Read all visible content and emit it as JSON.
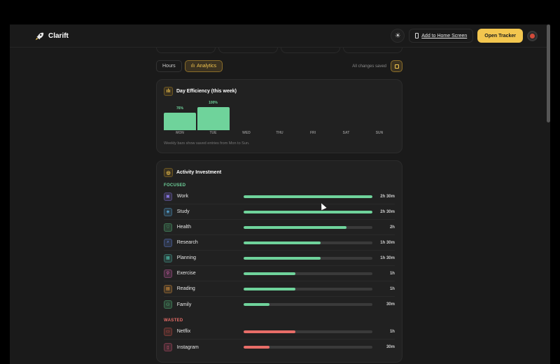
{
  "header": {
    "brand": "Clarift",
    "add_home": "Add to Home Screen",
    "open_tracker": "Open Tracker"
  },
  "tabs": [
    {
      "label": "Hours"
    },
    {
      "label": "Analytics"
    }
  ],
  "saved_status": "All changes saved",
  "efficiency": {
    "title": "Day Efficiency (this week)",
    "note": "Weekly bars show saved entries from Mon to Sun."
  },
  "chart_data": {
    "type": "bar",
    "categories": [
      "MON",
      "TUE",
      "WED",
      "THU",
      "FRI",
      "SAT",
      "SUN"
    ],
    "values": [
      76,
      100,
      null,
      null,
      null,
      null,
      null
    ],
    "value_labels": [
      "76%",
      "100%",
      "",
      "",
      "",
      "",
      ""
    ],
    "ylim": [
      0,
      100
    ],
    "color": "#6fd39b"
  },
  "investment": {
    "title": "Activity Investment",
    "focused_label": "FOCUSED",
    "wasted_label": "WASTED",
    "focused": [
      {
        "name": "Work",
        "time": "2h 30m",
        "fraction": 1.0,
        "color": "#8e7cf0",
        "icon": "briefcase-icon"
      },
      {
        "name": "Study",
        "time": "2h 30m",
        "fraction": 1.0,
        "color": "#5bb3e8",
        "icon": "graduation-cap-icon"
      },
      {
        "name": "Health",
        "time": "2h",
        "fraction": 0.8,
        "color": "#5fd08a",
        "icon": "heart-icon"
      },
      {
        "name": "Research",
        "time": "1h 30m",
        "fraction": 0.6,
        "color": "#6b8ff0",
        "icon": "search-icon"
      },
      {
        "name": "Planning",
        "time": "1h 30m",
        "fraction": 0.6,
        "color": "#4fc4b0",
        "icon": "calendar-icon"
      },
      {
        "name": "Exercise",
        "time": "1h",
        "fraction": 0.4,
        "color": "#e066b8",
        "icon": "dumbbell-icon"
      },
      {
        "name": "Reading",
        "time": "1h",
        "fraction": 0.4,
        "color": "#f0a040",
        "icon": "book-icon"
      },
      {
        "name": "Family",
        "time": "30m",
        "fraction": 0.2,
        "color": "#5fd08a",
        "icon": "users-icon"
      }
    ],
    "wasted": [
      {
        "name": "Netflix",
        "time": "1h",
        "fraction": 0.4,
        "color": "#e0564e",
        "icon": "tv-icon"
      },
      {
        "name": "Instagram",
        "time": "30m",
        "fraction": 0.2,
        "color": "#e0567a",
        "icon": "phone-icon"
      }
    ]
  },
  "colors": {
    "accent": "#f3c64f",
    "focused": "#6fd39b",
    "wasted": "#e86d68"
  }
}
